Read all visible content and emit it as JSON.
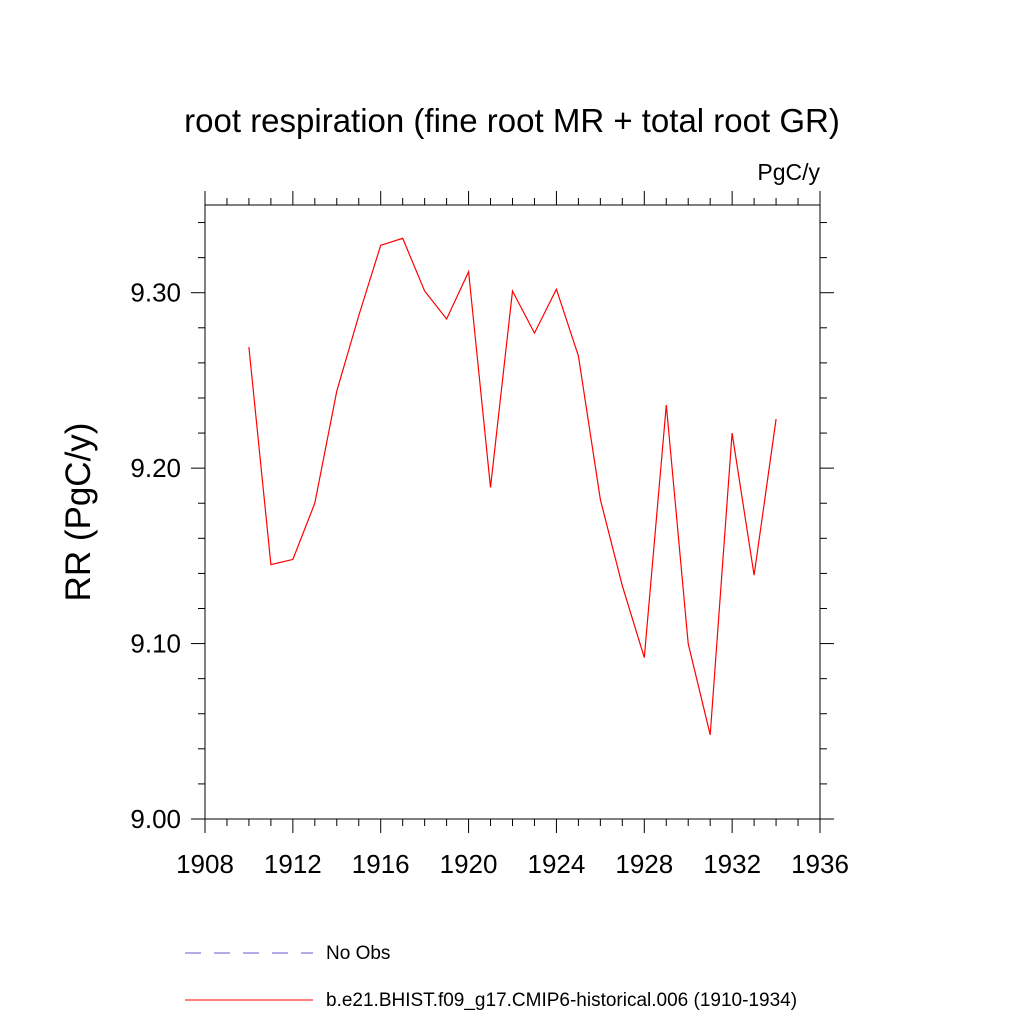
{
  "chart_data": {
    "type": "line",
    "title": "root respiration (fine root MR + total root GR)",
    "units": "PgC/y",
    "ylabel": "RR  (PgC/y)",
    "xlabel": "",
    "xlim": [
      1908,
      1936
    ],
    "ylim": [
      9.0,
      9.35
    ],
    "xticks": [
      "1908",
      "1912",
      "1916",
      "1920",
      "1924",
      "1928",
      "1932",
      "1936"
    ],
    "yticks": [
      "9.00",
      "9.10",
      "9.20",
      "9.30"
    ],
    "grid": false,
    "legend_position": "bottom",
    "series": [
      {
        "name": "b.e21.BHIST.f09_g17.CMIP6-historical.006 (1910-1934)",
        "color": "#ff0000",
        "style": "solid",
        "x": [
          1910,
          1911,
          1912,
          1913,
          1914,
          1915,
          1916,
          1917,
          1918,
          1919,
          1920,
          1921,
          1922,
          1923,
          1924,
          1925,
          1926,
          1927,
          1928,
          1929,
          1930,
          1931,
          1932,
          1933,
          1934
        ],
        "y": [
          9.269,
          9.145,
          9.148,
          9.18,
          9.244,
          9.287,
          9.327,
          9.331,
          9.301,
          9.285,
          9.312,
          9.189,
          9.301,
          9.277,
          9.302,
          9.264,
          9.182,
          9.133,
          9.092,
          9.236,
          9.1,
          9.048,
          9.22,
          9.139,
          9.228
        ]
      }
    ],
    "legend": [
      {
        "label": "No Obs",
        "color": "#6a5acd",
        "style": "dashed"
      },
      {
        "label": "b.e21.BHIST.f09_g17.CMIP6-historical.006 (1910-1934)",
        "color": "#ff0000",
        "style": "solid"
      }
    ]
  }
}
